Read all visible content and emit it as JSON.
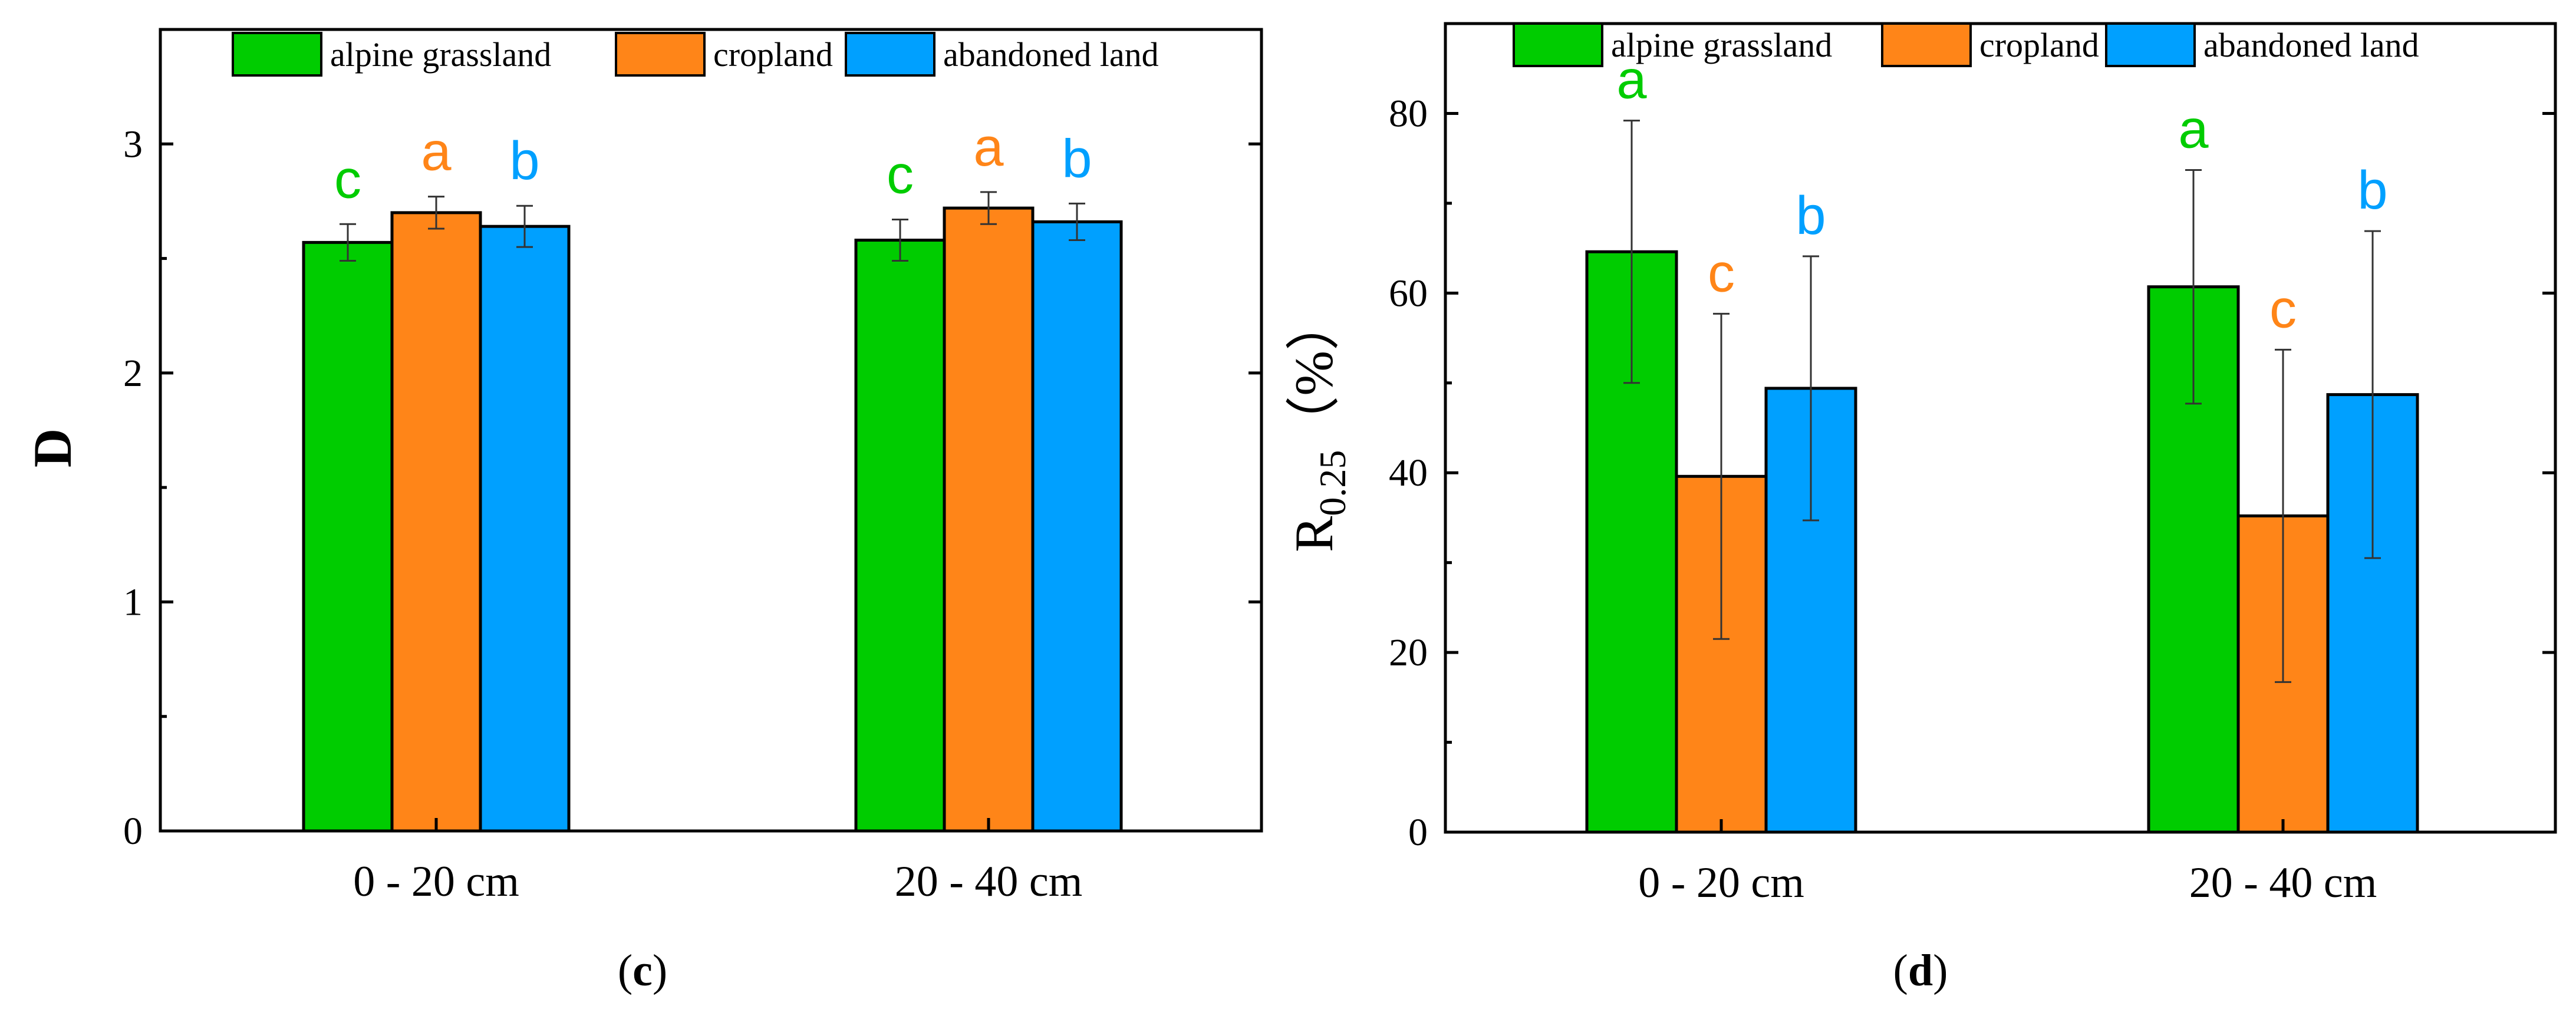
{
  "colors": {
    "alpine_grassland": "#00CC00",
    "cropland": "#FF8518",
    "abandoned_land": "#00A0FF"
  },
  "chart_data": [
    {
      "id": "c",
      "type": "bar",
      "panel_label": "(c)",
      "ylabel": "D",
      "ylim": [
        0,
        3.5
      ],
      "yticks": [
        0,
        1,
        2,
        3
      ],
      "categories": [
        "0 - 20 cm",
        "20 - 40 cm"
      ],
      "legend": [
        "alpine grassland",
        "cropland",
        "abandoned land"
      ],
      "legend_position": "top",
      "series": [
        {
          "name": "alpine grassland",
          "color_key": "alpine_grassland",
          "values": [
            2.57,
            2.58
          ],
          "errors": [
            0.08,
            0.09
          ],
          "letters": [
            "c",
            "c"
          ]
        },
        {
          "name": "cropland",
          "color_key": "cropland",
          "values": [
            2.7,
            2.72
          ],
          "errors": [
            0.07,
            0.07
          ],
          "letters": [
            "a",
            "a"
          ]
        },
        {
          "name": "abandoned land",
          "color_key": "abandoned_land",
          "values": [
            2.64,
            2.66
          ],
          "errors": [
            0.09,
            0.08
          ],
          "letters": [
            "b",
            "b"
          ]
        }
      ]
    },
    {
      "id": "d",
      "type": "bar",
      "panel_label": "(d)",
      "ylabel_main": "R",
      "ylabel_sub": "0.25",
      "ylabel_unit": "（%）",
      "ylim": [
        0,
        90
      ],
      "yticks": [
        0,
        20,
        40,
        60,
        80
      ],
      "categories": [
        "0 - 20 cm",
        "20 - 40 cm"
      ],
      "legend": [
        "alpine grassland",
        "cropland",
        "abandoned land"
      ],
      "legend_position": "top",
      "series": [
        {
          "name": "alpine grassland",
          "color_key": "alpine_grassland",
          "values": [
            64.6,
            60.7
          ],
          "errors": [
            14.6,
            13.0
          ],
          "letters": [
            "a",
            "a"
          ]
        },
        {
          "name": "cropland",
          "color_key": "cropland",
          "values": [
            39.6,
            35.2
          ],
          "errors": [
            18.1,
            18.5
          ],
          "letters": [
            "c",
            "c"
          ]
        },
        {
          "name": "abandoned land",
          "color_key": "abandoned_land",
          "values": [
            49.4,
            48.7
          ],
          "errors": [
            14.7,
            18.2
          ],
          "letters": [
            "b",
            "b"
          ]
        }
      ]
    }
  ]
}
